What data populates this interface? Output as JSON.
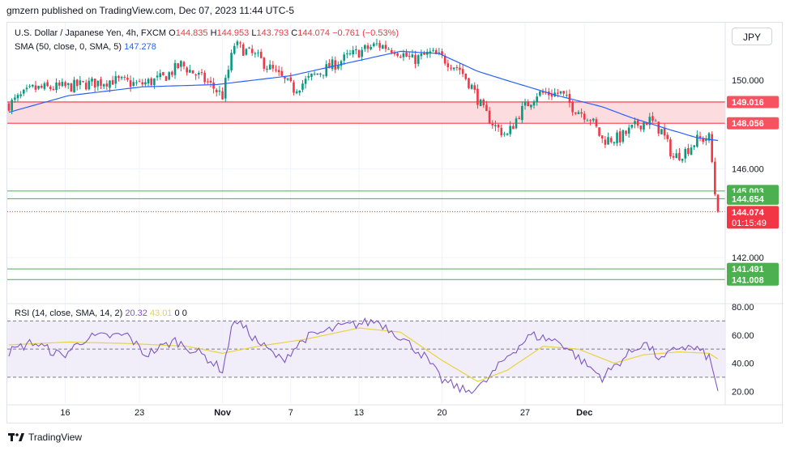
{
  "header": {
    "text": "gmzern published on TradingView.com, Dec 07, 2023 11:44 UTC-5"
  },
  "legend": {
    "title": "U.S. Dollar / Japanese Yen, 4h, FXCM",
    "open_label": "O",
    "open": "144.835",
    "high_label": "H",
    "high": "144.953",
    "low_label": "L",
    "low": "143.793",
    "close_label": "C",
    "close": "144.074",
    "change": "−0.761 (−0.53%)",
    "sma_label": "SMA (50, close, 0, SMA, 5)",
    "sma_value": "147.278",
    "rsi_label": "RSI (14, close, SMA, 14, 2)",
    "rsi_value": "20.32",
    "rsi_ma_value": "43.01",
    "rsi_extra1": "0",
    "rsi_extra2": "0"
  },
  "currency_button": "JPY",
  "footer": {
    "brand": "TradingView"
  },
  "colors": {
    "up": "#089981",
    "down": "#f23645",
    "sma": "#2962ff",
    "rsi": "#7e57c2",
    "rsi_ma": "#e8d33f",
    "zone_fill": "#fcdcdf",
    "support": "#4caf50"
  },
  "chart_data": [
    {
      "type": "candlestick",
      "title": "U.S. Dollar / Japanese Yen, 4h, FXCM",
      "ylim": [
        138.5,
        152.3
      ],
      "y_ticks": [
        "150.000",
        "146.000",
        "142.000"
      ],
      "x_ticks": [
        "16",
        "23",
        "Nov",
        "7",
        "13",
        "20",
        "27",
        "Dec"
      ],
      "x_tick_bar_index": [
        19,
        44,
        72,
        95,
        118,
        146,
        174,
        194
      ],
      "total_bars": 240,
      "anchors": [
        [
          0,
          148.9
        ],
        [
          8,
          149.6
        ],
        [
          20,
          149.7
        ],
        [
          35,
          150.0
        ],
        [
          44,
          149.8
        ],
        [
          52,
          150.1
        ],
        [
          58,
          150.7
        ],
        [
          66,
          150.0
        ],
        [
          72,
          149.3
        ],
        [
          76,
          151.6
        ],
        [
          84,
          151.0
        ],
        [
          90,
          150.3
        ],
        [
          96,
          149.6
        ],
        [
          104,
          150.3
        ],
        [
          115,
          151.1
        ],
        [
          124,
          151.6
        ],
        [
          130,
          151.4
        ],
        [
          136,
          150.9
        ],
        [
          142,
          151.2
        ],
        [
          146,
          151.0
        ],
        [
          152,
          150.5
        ],
        [
          156,
          149.7
        ],
        [
          160,
          148.6
        ],
        [
          164,
          147.9
        ],
        [
          168,
          147.5
        ],
        [
          172,
          148.5
        ],
        [
          178,
          149.4
        ],
        [
          186,
          149.4
        ],
        [
          190,
          148.8
        ],
        [
          196,
          148.3
        ],
        [
          200,
          147.3
        ],
        [
          206,
          147.4
        ],
        [
          212,
          148.0
        ],
        [
          216,
          148.2
        ],
        [
          220,
          147.7
        ],
        [
          224,
          146.5
        ],
        [
          228,
          146.8
        ],
        [
          232,
          147.3
        ],
        [
          236,
          147.4
        ],
        [
          239,
          144.07
        ]
      ],
      "sma50": [
        [
          0,
          148.55
        ],
        [
          20,
          149.3
        ],
        [
          45,
          149.7
        ],
        [
          70,
          149.8
        ],
        [
          95,
          150.2
        ],
        [
          115,
          150.8
        ],
        [
          132,
          151.3
        ],
        [
          145,
          151.2
        ],
        [
          158,
          150.4
        ],
        [
          170,
          149.9
        ],
        [
          185,
          149.3
        ],
        [
          200,
          148.8
        ],
        [
          210,
          148.3
        ],
        [
          222,
          147.8
        ],
        [
          232,
          147.4
        ],
        [
          239,
          147.28
        ]
      ],
      "price_labels": [
        {
          "value": 149.016,
          "text": "149.016",
          "kind": "zone-top"
        },
        {
          "value": 148.056,
          "text": "148.056",
          "kind": "zone-bottom"
        },
        {
          "value": 145.003,
          "text": "145.003",
          "kind": "support"
        },
        {
          "value": 144.654,
          "text": "144.654",
          "kind": "support"
        },
        {
          "value": 144.074,
          "text": "144.074",
          "sub": "01:15:49",
          "kind": "last"
        },
        {
          "value": 141.491,
          "text": "141.491",
          "kind": "support"
        },
        {
          "value": 141.008,
          "text": "141.008",
          "kind": "support"
        }
      ],
      "zone": {
        "top": 149.016,
        "bottom": 148.056
      },
      "support_levels": [
        145.003,
        144.654,
        141.491,
        141.008
      ]
    },
    {
      "type": "line",
      "title": "RSI (14, close, SMA, 14, 2)",
      "ylim": [
        15,
        80
      ],
      "y_ticks": [
        "80.00",
        "60.00",
        "40.00",
        "20.00"
      ],
      "bands": {
        "upper": 70,
        "middle": 50,
        "lower": 30
      },
      "rsi_anchors": [
        [
          0,
          48
        ],
        [
          8,
          55
        ],
        [
          18,
          45
        ],
        [
          26,
          58
        ],
        [
          40,
          60
        ],
        [
          46,
          46
        ],
        [
          56,
          56
        ],
        [
          66,
          45
        ],
        [
          72,
          35
        ],
        [
          76,
          72
        ],
        [
          84,
          55
        ],
        [
          92,
          42
        ],
        [
          100,
          58
        ],
        [
          112,
          66
        ],
        [
          124,
          70
        ],
        [
          130,
          62
        ],
        [
          140,
          45
        ],
        [
          146,
          28
        ],
        [
          154,
          20
        ],
        [
          160,
          25
        ],
        [
          168,
          45
        ],
        [
          176,
          60
        ],
        [
          186,
          55
        ],
        [
          194,
          40
        ],
        [
          200,
          30
        ],
        [
          208,
          45
        ],
        [
          214,
          55
        ],
        [
          220,
          42
        ],
        [
          226,
          52
        ],
        [
          232,
          50
        ],
        [
          236,
          44
        ],
        [
          239,
          20.32
        ]
      ],
      "rsi_ma_anchors": [
        [
          0,
          53
        ],
        [
          20,
          55
        ],
        [
          40,
          54
        ],
        [
          60,
          52
        ],
        [
          72,
          47
        ],
        [
          84,
          52
        ],
        [
          100,
          57
        ],
        [
          118,
          65
        ],
        [
          132,
          62
        ],
        [
          146,
          42
        ],
        [
          158,
          27
        ],
        [
          168,
          35
        ],
        [
          180,
          52
        ],
        [
          192,
          50
        ],
        [
          204,
          40
        ],
        [
          214,
          46
        ],
        [
          226,
          48
        ],
        [
          236,
          47
        ],
        [
          239,
          43.01
        ]
      ]
    }
  ]
}
